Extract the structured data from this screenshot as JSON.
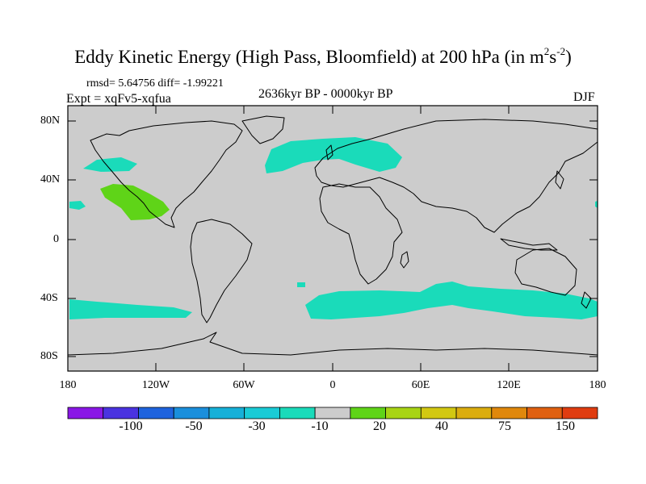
{
  "title": "Eddy Kinetic Energy (High Pass, Bloomfield) at 200 hPa (in m",
  "title_unit_exp1": "2",
  "title_unit_s": "s",
  "title_unit_exp2": "-2",
  "title_close": ")",
  "stats": "rmsd= 5.64756 diff= -1.99221",
  "period": "2636kyr BP - 0000kyr BP",
  "experiment": "Expt = xqFv5-xqfua",
  "season": "DJF",
  "lat_labels": [
    "80N",
    "40N",
    "0",
    "40S",
    "80S"
  ],
  "lon_labels": [
    "180",
    "120W",
    "60W",
    "0",
    "60E",
    "120E",
    "180"
  ],
  "colorbar": {
    "labels": [
      "-100",
      "-50",
      "-30",
      "-10",
      "20",
      "40",
      "75",
      "150"
    ],
    "colors": [
      "#8a17e6",
      "#4a33e0",
      "#1f63de",
      "#1a8fdc",
      "#16b0d8",
      "#19cbd6",
      "#1adbba",
      "#cccccc",
      "#5fd418",
      "#a8d414",
      "#d2c812",
      "#dbad0f",
      "#e0880c",
      "#e06010",
      "#e03c10"
    ]
  },
  "fill_colors": {
    "land_background": "#cccccc",
    "negative_anomaly": "#1adbba",
    "positive_anomaly": "#5fd418"
  }
}
